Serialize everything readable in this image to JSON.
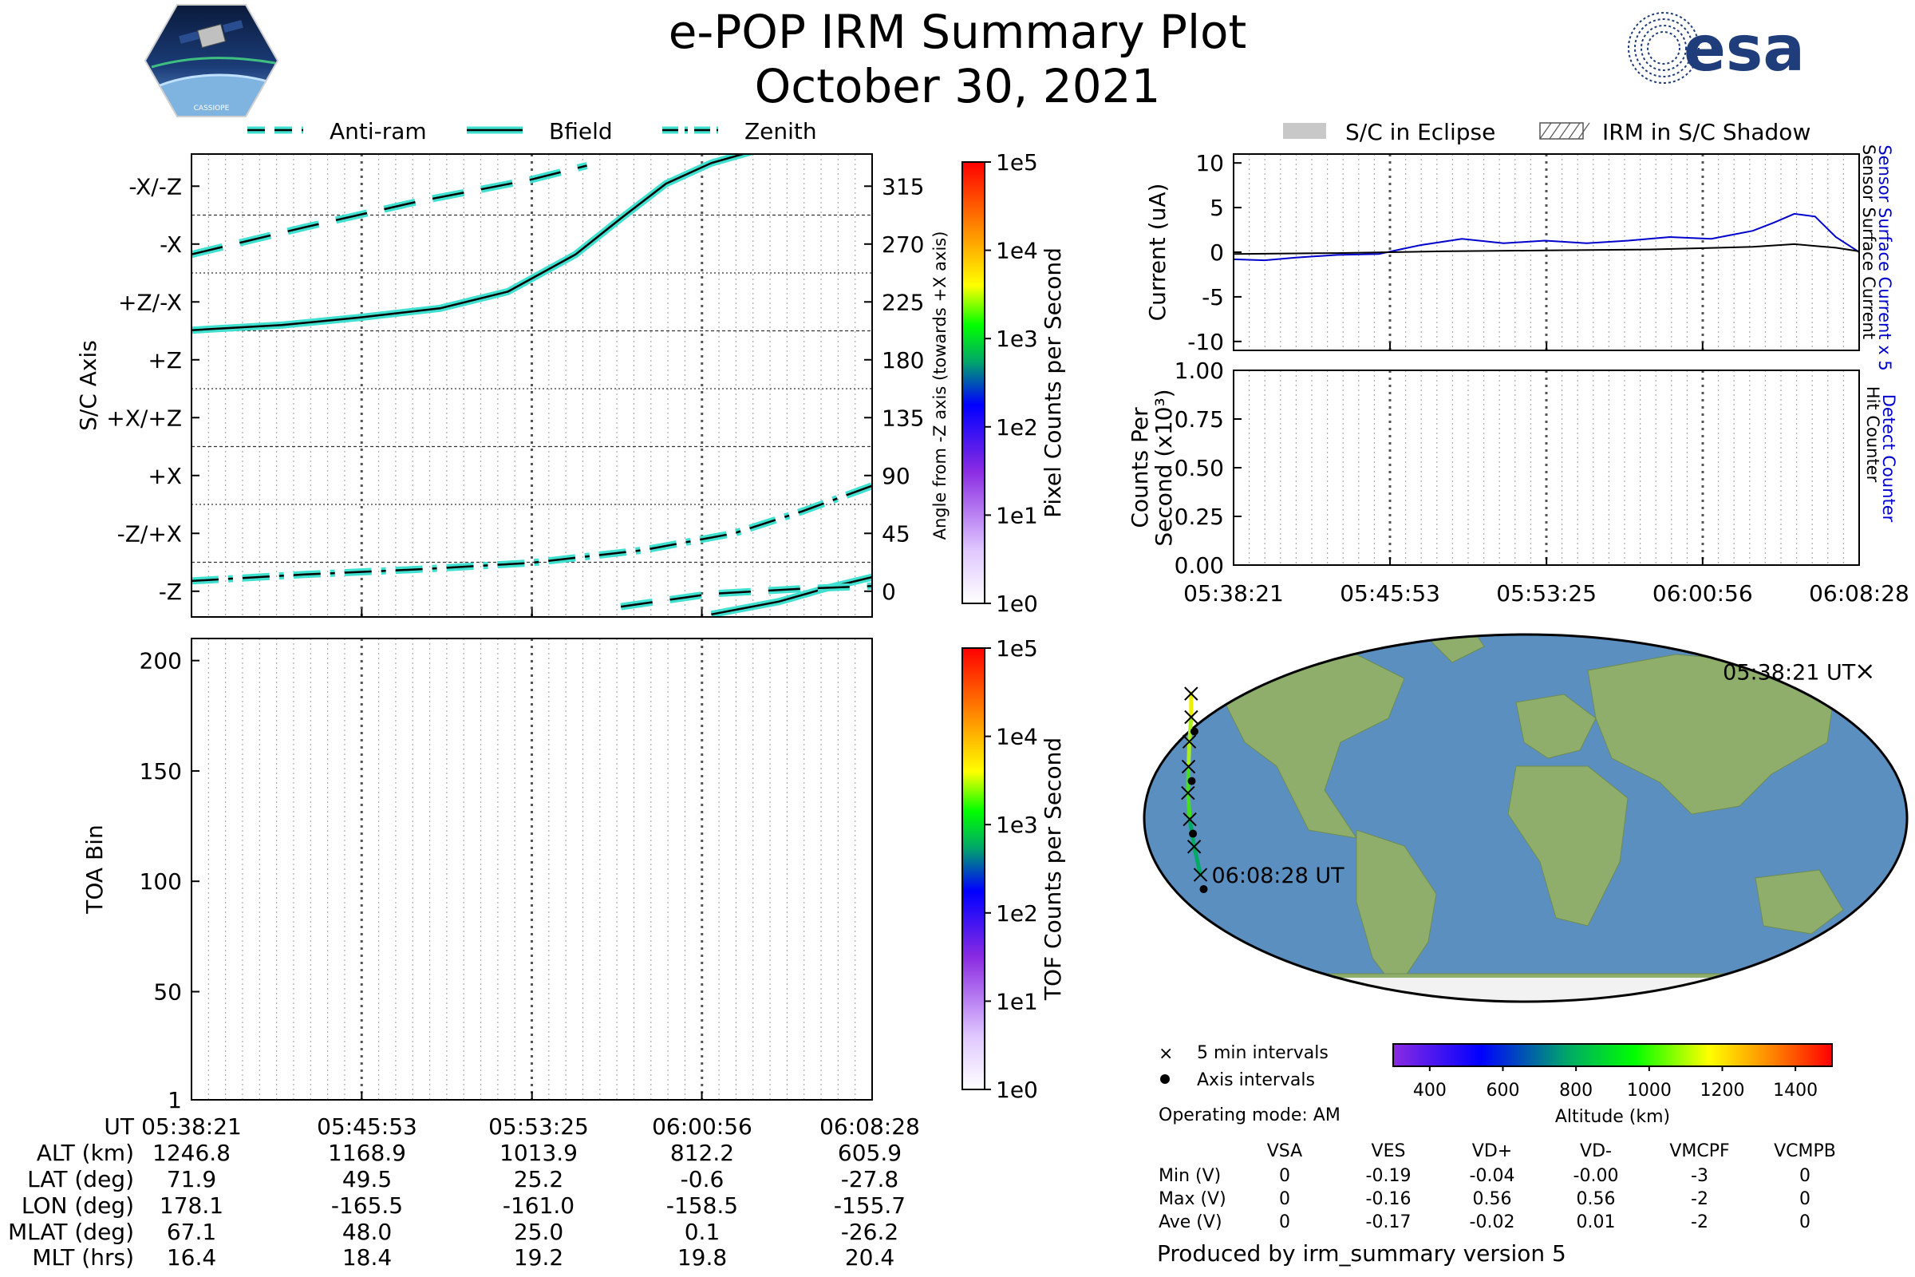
{
  "header": {
    "title": "e-POP IRM Summary Plot",
    "date": "October 30, 2021",
    "logo_left_text": "CASSIOPE",
    "logo_right_text": "esa"
  },
  "colors": {
    "trace_fill": "#40e0d0",
    "trace_line": "#000000",
    "sensor_current": "#0000cc",
    "detect_counter": "#0000cc",
    "grid": "#808080",
    "eclipse": "#c8c8c8",
    "ocean": "#5b8fc0",
    "land": "#8fae6c"
  },
  "top_legend": {
    "items": [
      {
        "label": "Anti-ram",
        "style": "dashed"
      },
      {
        "label": "Bfield",
        "style": "solid"
      },
      {
        "label": "Zenith",
        "style": "dashdot"
      }
    ]
  },
  "right_legend": {
    "items": [
      {
        "label": "S/C in Eclipse",
        "swatch": "solid-gray"
      },
      {
        "label": "IRM in S/C Shadow",
        "swatch": "hatched"
      }
    ]
  },
  "chart_data": [
    {
      "id": "sc_axis",
      "type": "line",
      "ylabel": "S/C Axis",
      "right_ylabel": "Angle from -Z axis (towards +X axis)",
      "categorical_ticks": [
        "-X/-Z",
        "-X",
        "+Z/-X",
        "+Z",
        "+X/+Z",
        "+X",
        "-Z/+X",
        "-Z"
      ],
      "angle_ticks": [
        315,
        270,
        225,
        180,
        135,
        90,
        45,
        0
      ],
      "ylim": [
        -20,
        340
      ],
      "x_ticks": [
        "05:38:21",
        "05:45:53",
        "05:53:25",
        "06:00:56",
        "06:08:28"
      ],
      "xlim_minutes": [
        0,
        30.12
      ],
      "series": [
        {
          "name": "Bfield",
          "style": "solid",
          "segments": [
            [
              [
                0,
                203
              ],
              [
                4,
                207
              ],
              [
                7.5,
                213
              ],
              [
                11,
                220
              ],
              [
                14,
                233
              ],
              [
                17,
                262
              ],
              [
                19,
                290
              ],
              [
                21,
                317
              ],
              [
                23,
                333
              ],
              [
                25,
                343
              ]
            ],
            [
              [
                23,
                -18
              ],
              [
                26,
                -8
              ],
              [
                28,
                2
              ],
              [
                30.12,
                11
              ]
            ]
          ]
        },
        {
          "name": "Anti-ram",
          "style": "dashed",
          "segments": [
            [
              [
                0,
                262
              ],
              [
                5,
                283
              ],
              [
                10,
                303
              ],
              [
                15,
                320
              ],
              [
                17.5,
                331
              ]
            ],
            [
              [
                19,
                -12
              ],
              [
                23,
                -2
              ],
              [
                27,
                2
              ],
              [
                30.12,
                4
              ]
            ]
          ]
        },
        {
          "name": "Zenith",
          "style": "dashdot",
          "segments": [
            [
              [
                0,
                8
              ],
              [
                5,
                13
              ],
              [
                10,
                17
              ],
              [
                15,
                22
              ],
              [
                20,
                32
              ],
              [
                24,
                45
              ],
              [
                27,
                62
              ],
              [
                30.12,
                82
              ]
            ]
          ]
        }
      ]
    },
    {
      "id": "toa",
      "type": "heatmap",
      "ylabel": "TOA Bin",
      "y_ticks": [
        1,
        50,
        100,
        150,
        200
      ],
      "ylim": [
        1,
        210
      ],
      "colorbar_label": "TOF Counts per Second",
      "colorbar_ticks": [
        "1e0",
        "1e1",
        "1e2",
        "1e3",
        "1e4",
        "1e5"
      ],
      "values": []
    },
    {
      "id": "pixel_colorbar",
      "type": "heatmap",
      "colorbar_label": "Pixel Counts per Second",
      "colorbar_ticks": [
        "1e0",
        "1e1",
        "1e2",
        "1e3",
        "1e4",
        "1e5"
      ],
      "values": []
    },
    {
      "id": "current",
      "type": "line",
      "ylabel": "Current (uA)",
      "right_label_blue": "Sensor Surface Current x 5",
      "right_label_black": "Sensor Surface Current",
      "ylim": [
        -11,
        11
      ],
      "y_ticks": [
        10,
        5,
        0,
        -5,
        -10
      ],
      "series": [
        {
          "name": "Sensor Surface Current x 5",
          "color": "blue",
          "x": [
            0,
            1.5,
            3,
            5,
            7,
            8,
            9,
            11,
            13,
            15,
            17,
            19,
            21,
            23,
            25,
            26,
            27,
            28,
            29,
            30,
            30.12
          ],
          "y": [
            -0.8,
            -0.9,
            -0.6,
            -0.3,
            -0.2,
            0.3,
            0.8,
            1.5,
            1.0,
            1.3,
            1.0,
            1.3,
            1.7,
            1.5,
            2.4,
            3.3,
            4.3,
            4.0,
            1.7,
            0.2,
            0.0
          ]
        },
        {
          "name": "Sensor Surface Current",
          "color": "black",
          "x": [
            0,
            5,
            10,
            15,
            20,
            25,
            27,
            29,
            30.12
          ],
          "y": [
            -0.2,
            -0.1,
            0.1,
            0.2,
            0.3,
            0.6,
            0.9,
            0.5,
            0.1
          ]
        }
      ]
    },
    {
      "id": "counts",
      "type": "line",
      "ylabel": "Counts Per Second (x10³)",
      "right_label_blue": "Detect Counter",
      "right_label_black": "Hit Counter",
      "ylim": [
        0,
        1.0
      ],
      "y_ticks": [
        "1.00",
        "0.75",
        "0.50",
        "0.25",
        "0.00"
      ],
      "x_ticks": [
        "05:38:21",
        "05:45:53",
        "05:53:25",
        "06:00:56",
        "06:08:28"
      ],
      "series": [
        {
          "name": "Detect Counter",
          "color": "blue",
          "x": [
            0,
            30.12
          ],
          "y": [
            0,
            0
          ]
        },
        {
          "name": "Hit Counter",
          "color": "black",
          "x": [
            0,
            30.12
          ],
          "y": [
            0,
            0
          ]
        }
      ]
    },
    {
      "id": "orbit_map",
      "type": "scatter",
      "start_label": "05:38:21 UT",
      "end_label": "06:08:28 UT",
      "track": [
        {
          "lon": 178.1,
          "lat": 71.9,
          "alt": 1246.8
        },
        {
          "lon": -170.0,
          "lat": 61.0,
          "alt": 1220.0
        },
        {
          "lon": -165.5,
          "lat": 49.5,
          "alt": 1168.9
        },
        {
          "lon": -163.0,
          "lat": 37.5,
          "alt": 1100.0
        },
        {
          "lon": -161.0,
          "lat": 25.2,
          "alt": 1013.9
        },
        {
          "lon": -159.8,
          "lat": 12.3,
          "alt": 920.0
        },
        {
          "lon": -158.5,
          "lat": -0.6,
          "alt": 812.2
        },
        {
          "lon": -157.0,
          "lat": -14.0,
          "alt": 710.0
        },
        {
          "lon": -155.7,
          "lat": -27.8,
          "alt": 605.9
        }
      ],
      "five_min_marks": [
        0,
        1,
        2,
        3,
        4,
        5,
        6,
        7,
        8
      ],
      "legend": {
        "five_min": "5 min intervals",
        "axis": "Axis intervals"
      },
      "colorbar_label": "Altitude (km)",
      "colorbar_ticks": [
        400,
        600,
        800,
        1000,
        1200,
        1400
      ],
      "colorbar_range": [
        300,
        1500
      ]
    }
  ],
  "ephemeris": {
    "rows": [
      {
        "label": "UT",
        "values": [
          "05:38:21",
          "05:45:53",
          "05:53:25",
          "06:00:56",
          "06:08:28"
        ]
      },
      {
        "label": "ALT (km)",
        "values": [
          "1246.8",
          "1168.9",
          "1013.9",
          "812.2",
          "605.9"
        ]
      },
      {
        "label": "LAT (deg)",
        "values": [
          "71.9",
          "49.5",
          "25.2",
          "-0.6",
          "-27.8"
        ]
      },
      {
        "label": "LON (deg)",
        "values": [
          "178.1",
          "-165.5",
          "-161.0",
          "-158.5",
          "-155.7"
        ]
      },
      {
        "label": "MLAT (deg)",
        "values": [
          "67.1",
          "48.0",
          "25.0",
          "0.1",
          "-26.2"
        ]
      },
      {
        "label": "MLT (hrs)",
        "values": [
          "16.4",
          "18.4",
          "19.2",
          "19.8",
          "20.4"
        ]
      }
    ]
  },
  "operating_mode": "Operating mode: AM",
  "voltage_table": {
    "columns": [
      "VSA",
      "VES",
      "VD+",
      "VD-",
      "VMCPF",
      "VCMPB"
    ],
    "rows": [
      {
        "label": "Min (V)",
        "values": [
          "0",
          "-0.19",
          "-0.04",
          "-0.00",
          "-3",
          "0"
        ]
      },
      {
        "label": "Max (V)",
        "values": [
          "0",
          "-0.16",
          "0.56",
          "0.56",
          "-2",
          "0"
        ]
      },
      {
        "label": "Ave (V)",
        "values": [
          "0",
          "-0.17",
          "-0.02",
          "0.01",
          "-2",
          "0"
        ]
      }
    ]
  },
  "footer": "Produced by irm_summary version 5"
}
